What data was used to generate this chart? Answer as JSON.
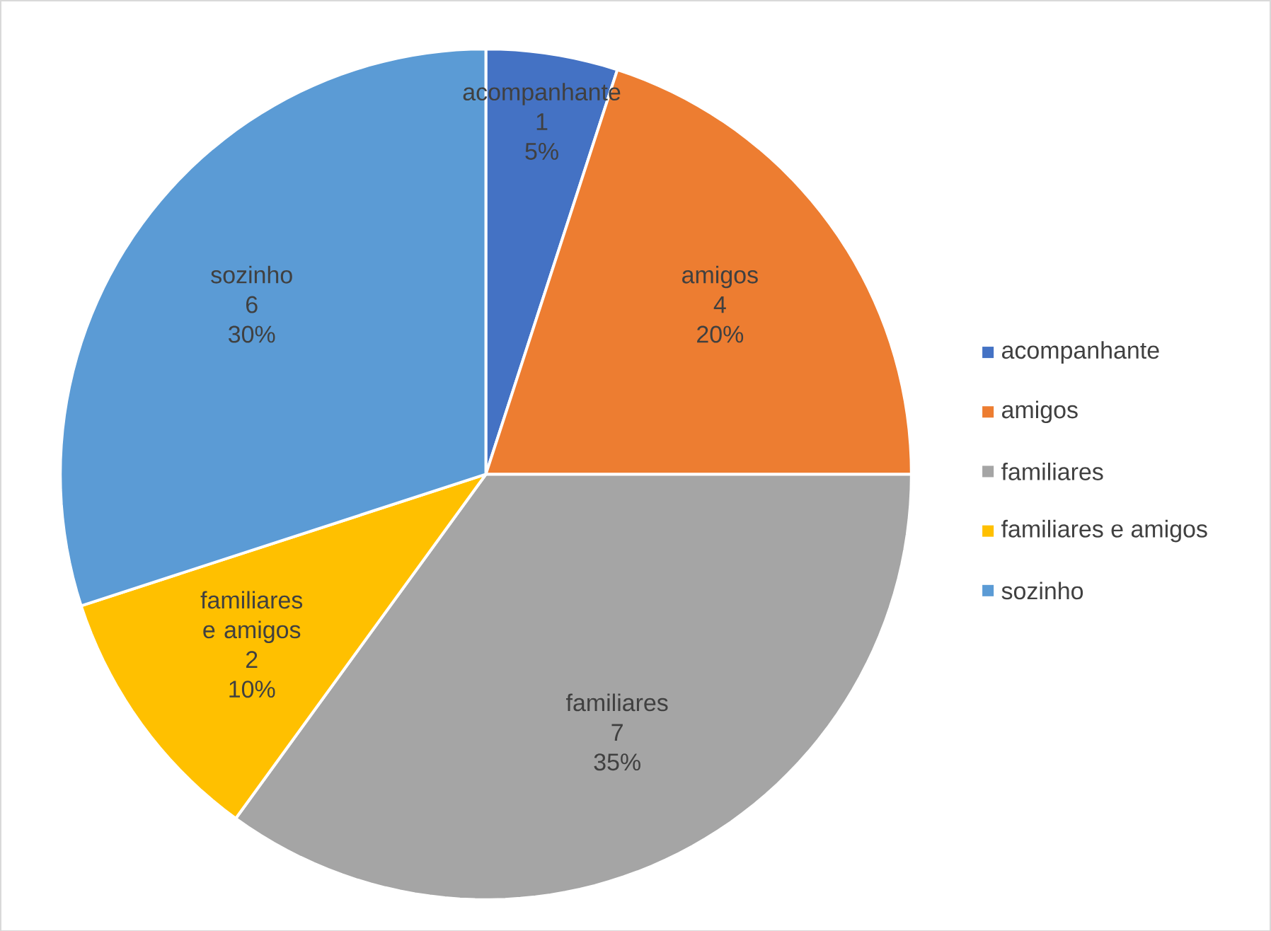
{
  "chart_data": {
    "type": "pie",
    "categories": [
      "acompanhante",
      "amigos",
      "familiares",
      "familiares e amigos",
      "sozinho"
    ],
    "values": [
      1,
      4,
      7,
      2,
      6
    ],
    "colors": [
      "#4472c4",
      "#ed7d31",
      "#a5a5a5",
      "#ffc000",
      "#5b9bd5"
    ],
    "value_labels": [
      "1",
      "4",
      "7",
      "2",
      "6"
    ],
    "annotations": [
      "5%",
      "20%",
      "35%",
      "10%",
      "30%"
    ],
    "legend": "right"
  }
}
